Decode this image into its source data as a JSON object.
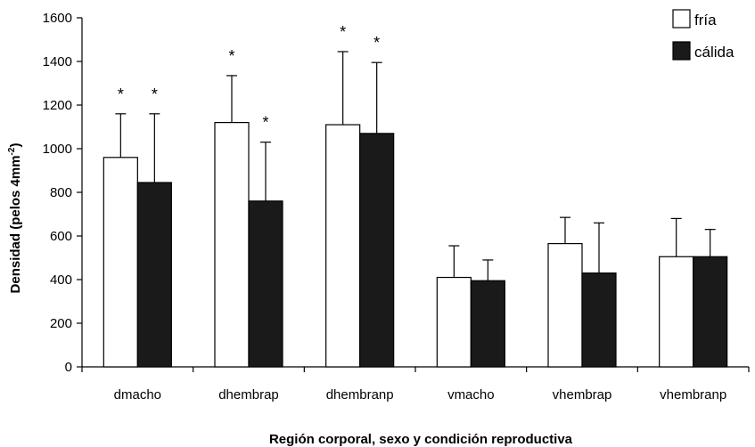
{
  "chart_data": {
    "type": "bar",
    "title": "",
    "xlabel": "Región corporal, sexo y condición reproductiva",
    "ylabel_main": "Densidad (pelos 4mm",
    "ylabel_sup": "-2",
    "ylabel_close": ")",
    "ylim": [
      0,
      1600
    ],
    "yticks": [
      0,
      200,
      400,
      600,
      800,
      1000,
      1200,
      1400,
      1600
    ],
    "categories": [
      "dmacho",
      "dhembrap",
      "dhembranp",
      "vmacho",
      "vhembrap",
      "vhembranp"
    ],
    "series": [
      {
        "name": "fría",
        "color": "#ffffff",
        "values": [
          960,
          1120,
          1110,
          410,
          565,
          505
        ],
        "error": [
          200,
          215,
          335,
          145,
          120,
          175
        ],
        "significant": [
          true,
          true,
          true,
          false,
          false,
          false
        ]
      },
      {
        "name": "cálida",
        "color": "#1a1a1a",
        "values": [
          845,
          760,
          1070,
          395,
          430,
          505
        ],
        "error": [
          315,
          270,
          325,
          95,
          230,
          125
        ],
        "significant": [
          true,
          true,
          true,
          false,
          false,
          false
        ]
      }
    ],
    "significance_marker": "*",
    "legend_position": "top-right",
    "grid": false
  }
}
